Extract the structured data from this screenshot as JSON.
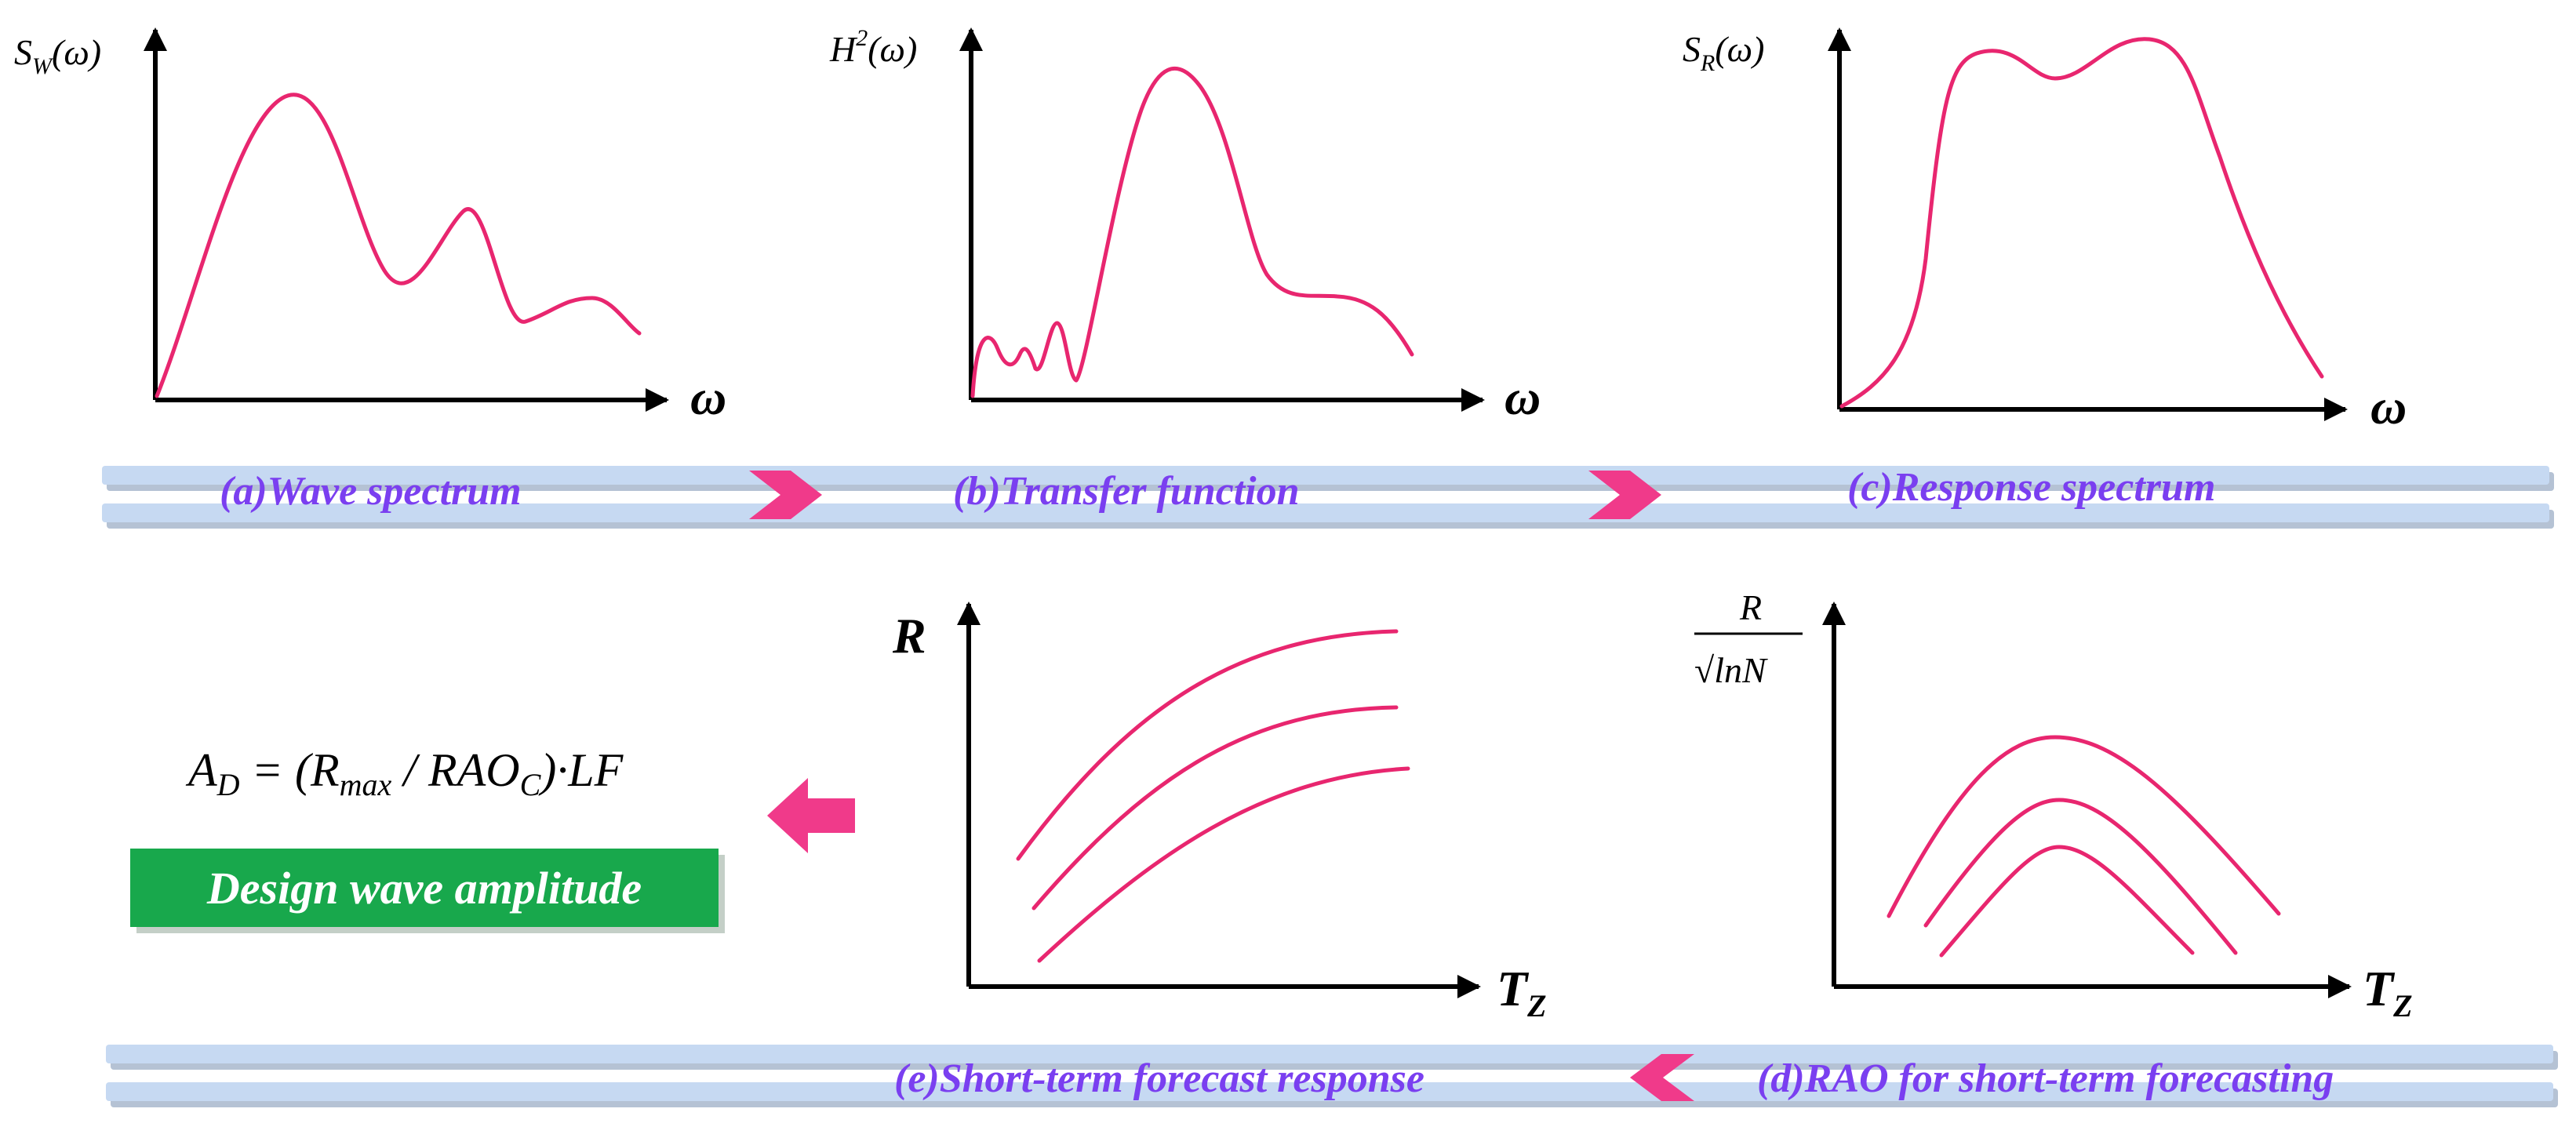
{
  "captions": {
    "a": "(a)Wave spectrum",
    "b": "(b)Transfer function",
    "c": "(c)Response spectrum",
    "d": "(d)RAO for short-term forecasting",
    "e": "(e)Short-term forecast response"
  },
  "axes": {
    "a": {
      "y": "S_W(ω)",
      "x": "ω"
    },
    "b": {
      "y": "H²(ω)",
      "x": "ω"
    },
    "c": {
      "y": "S_R(ω)",
      "x": "ω"
    },
    "e": {
      "y": "R",
      "x": "T_Z"
    },
    "d": {
      "y_top": "R",
      "y_bottom": "√lnN",
      "x": "T_Z"
    }
  },
  "formula": "A_D = (R_max / RAO_C)·LF",
  "badge": {
    "label": "Design wave amplitude"
  },
  "colors": {
    "curve": "#e8266f",
    "caption": "#7a3ff0",
    "band": "#c6d9f2",
    "arrow": "#f03a8a",
    "badge": "#18a84c"
  }
}
